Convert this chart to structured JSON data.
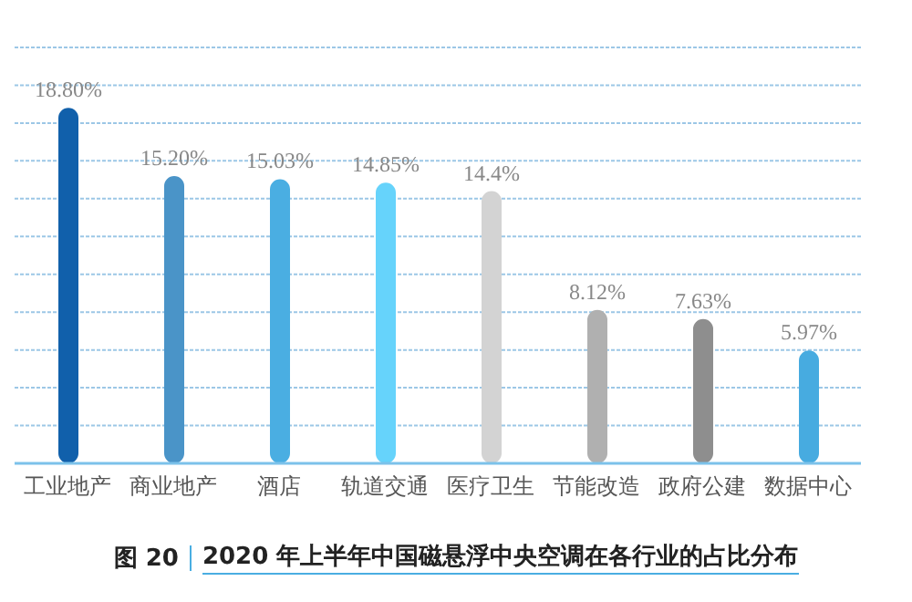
{
  "chart_data": {
    "type": "bar",
    "title": "图 20",
    "subtitle": "2020 年上半年中国磁悬浮中央空调在各行业的占比分布",
    "categories": [
      "工业地产",
      "商业地产",
      "酒店",
      "轨道交通",
      "医疗卫生",
      "节能改造",
      "政府公建",
      "数据中心"
    ],
    "values": [
      18.8,
      15.2,
      15.03,
      14.85,
      14.4,
      8.12,
      7.63,
      5.97
    ],
    "value_labels": [
      "18.80%",
      "15.20%",
      "15.03%",
      "14.85%",
      "14.4%",
      "8.12%",
      "7.63%",
      "5.97%"
    ],
    "colors": [
      "#1160ab",
      "#4a94c8",
      "#4aaee2",
      "#66d3fb",
      "#d3d3d3",
      "#b0b0b0",
      "#8e8e8e",
      "#47abe0"
    ],
    "ylim": [
      0,
      22
    ],
    "yticks": [
      {
        "value": 0,
        "label": null
      },
      {
        "value": 2,
        "label": null
      },
      {
        "value": 4,
        "label": null
      },
      {
        "value": 6,
        "label": null
      },
      {
        "value": 8,
        "label": null
      },
      {
        "value": 10,
        "label": null
      },
      {
        "value": 12,
        "label": null
      },
      {
        "value": 14,
        "label": null
      },
      {
        "value": 16,
        "label": null
      },
      {
        "value": 18,
        "label": null
      },
      {
        "value": 20,
        "label": null
      },
      {
        "value": 22,
        "label": null
      }
    ],
    "grid": "y",
    "tick_labels": "x"
  }
}
